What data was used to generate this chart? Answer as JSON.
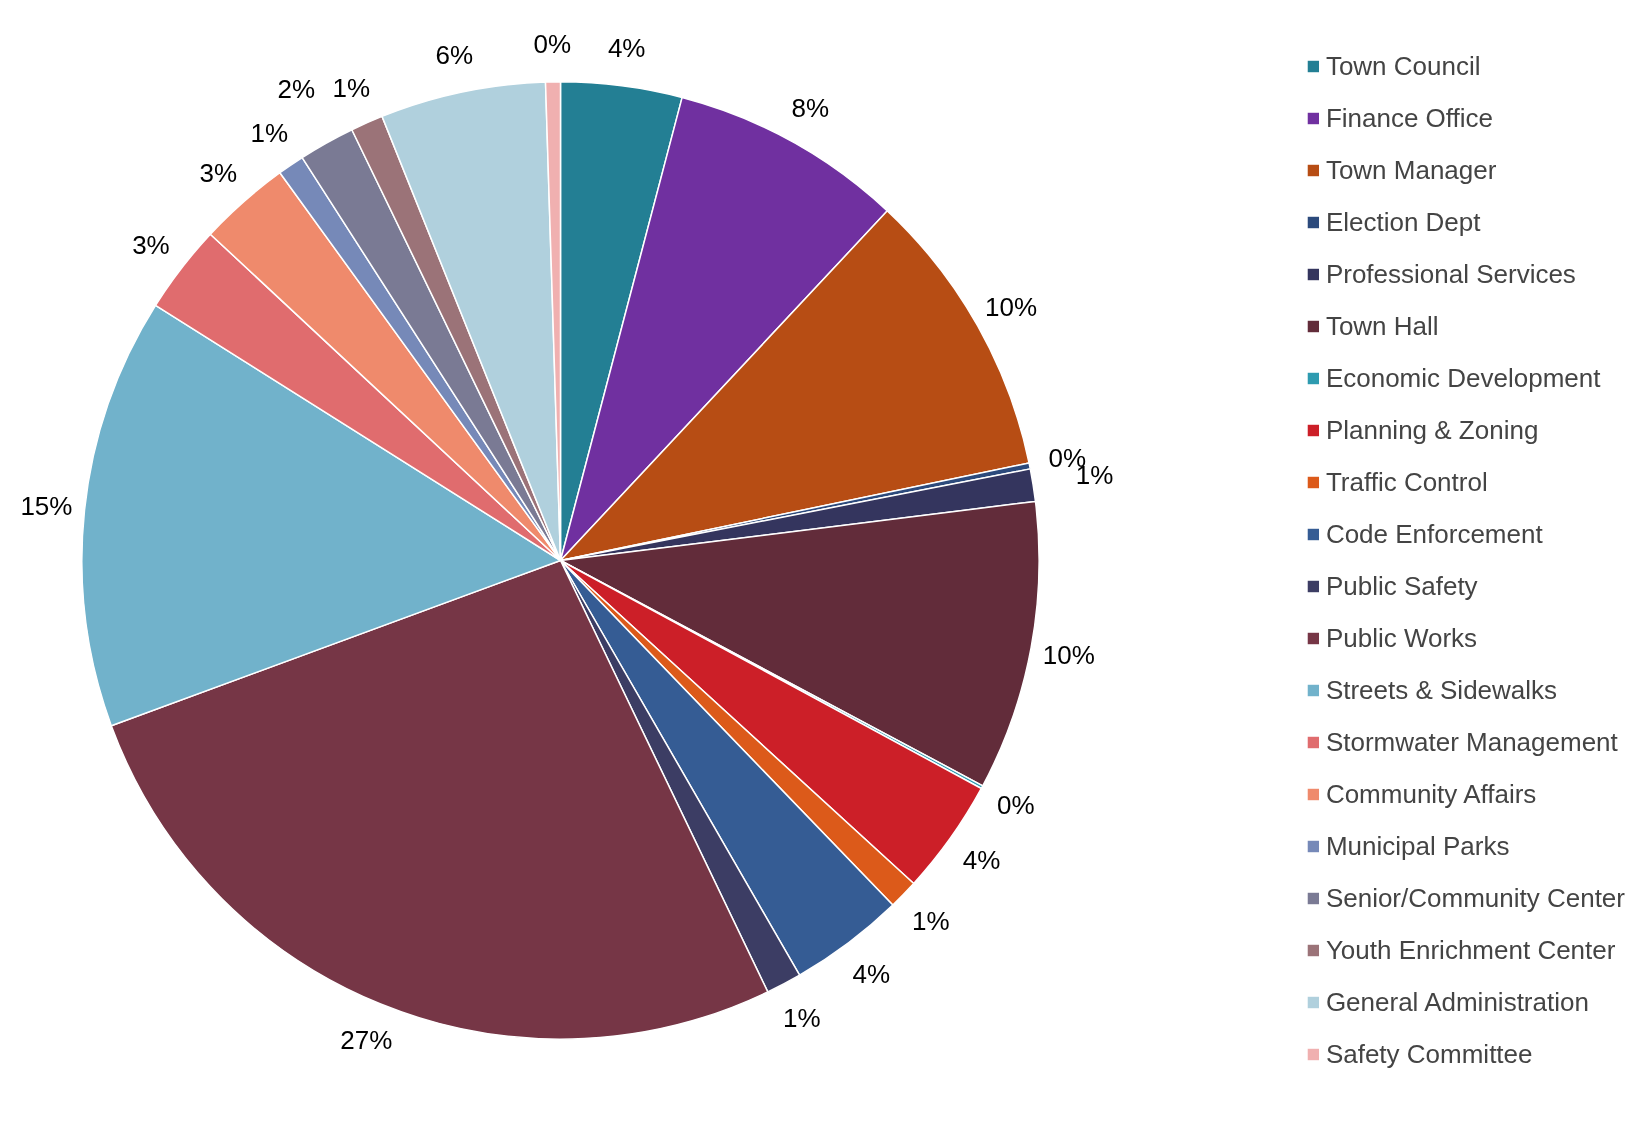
{
  "chart_data": {
    "type": "pie",
    "data_labels": true,
    "legend": "right",
    "categories": [
      "Town Council",
      "Finance Office",
      "Town Manager",
      "Election Dept",
      "Professional Services",
      "Town Hall",
      "Economic Development",
      "Planning & Zoning",
      "Traffic Control",
      "Code Enforcement",
      "Public Safety",
      "Public Works",
      "Streets & Sidewalks",
      "Stormwater Management",
      "Community Affairs",
      "Municipal Parks",
      "Senior/Community Center",
      "Youth Enrichment Center",
      "General Administration",
      "Safety Committee"
    ],
    "values": [
      4.1,
      7.9,
      9.8,
      0.2,
      1.1,
      9.8,
      0.1,
      3.9,
      1.0,
      3.9,
      1.2,
      26.6,
      14.6,
      3.0,
      3.1,
      0.9,
      1.9,
      1.1,
      5.6,
      0.5
    ],
    "value_labels": [
      "4%",
      "8%",
      "10%",
      "0%",
      "1%",
      "10%",
      "0%",
      "4%",
      "1%",
      "4%",
      "1%",
      "27%",
      "15%",
      "3%",
      "3%",
      "1%",
      "2%",
      "1%",
      "6%",
      "0%"
    ],
    "colors": [
      "#237f94",
      "#7030a0",
      "#b74d14",
      "#2c4a7c",
      "#34355e",
      "#622c3a",
      "#2e9bb0",
      "#cc1f28",
      "#dc5a1a",
      "#355c94",
      "#3c3d64",
      "#763646",
      "#71b2cb",
      "#e06c6e",
      "#ef8a6c",
      "#7689b8",
      "#7a7a94",
      "#9b7378",
      "#b0d0dd",
      "#f0b0b0"
    ]
  }
}
